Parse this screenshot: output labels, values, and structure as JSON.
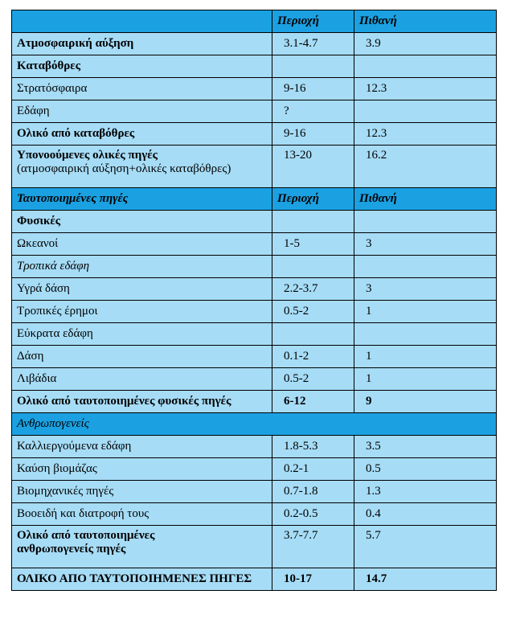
{
  "table": {
    "rows": [
      [
        "Περιοχή",
        "Πιθανή"
      ],
      [
        "Ατμοσφαιρική αύξηση",
        "3.1-4.7",
        "3.9"
      ],
      [
        "Καταβόθρες"
      ],
      [
        "Στρατόσφαιρα",
        "9-16",
        "12.3"
      ],
      [
        "Εδάφη",
        "?"
      ],
      [
        "Ολικό από καταβόθρες",
        "9-16",
        "12.3"
      ],
      [
        "Υπονοούμενες ολικές πηγές",
        "(ατμοσφαιρική αύξηση+ολικές καταβόθρες)",
        "13-20",
        "16.2"
      ],
      [
        "Ταυτοποιημένες πηγές",
        "Περιοχή",
        "Πιθανή"
      ],
      [
        "Φυσικές"
      ],
      [
        "Ωκεανοί",
        "1-5",
        "3"
      ],
      [
        "Τροπικά εδάφη"
      ],
      [
        "Υγρά δάση",
        "2.2-3.7",
        "3"
      ],
      [
        "Τροπικές έρημοι",
        "0.5-2",
        "1"
      ],
      [
        "Εύκρατα εδάφη"
      ],
      [
        "Δάση",
        "0.1-2",
        "1"
      ],
      [
        "Λιβάδια",
        "0.5-2",
        "1"
      ],
      [
        "Ολικό από ταυτοποιημένες φυσικές πηγές",
        "6-12",
        "9"
      ],
      [
        "Ανθρωπογενείς"
      ],
      [
        "Καλλιεργούμενα εδάφη",
        "1.8-5.3",
        "3.5"
      ],
      [
        "Καύση βιομάζας",
        "0.2-1",
        "0.5"
      ],
      [
        "Βιομηχανικές πηγές",
        "0.7-1.8",
        "1.3"
      ],
      [
        "Βοοειδή και διατροφή τους",
        "0.2-0.5",
        "0.4"
      ],
      [
        "Ολικό από ταυτοποιημένες",
        "ανθρωπογενείς πηγές",
        "3.7-7.7",
        "5.7"
      ],
      [
        "ΟΛΙΚΟ ΑΠΟ ΤΑΥΤΟΠΟΙΗΜΕΝΕΣ ΠΗΓΕΣ",
        "10-17",
        "14.7"
      ]
    ]
  }
}
